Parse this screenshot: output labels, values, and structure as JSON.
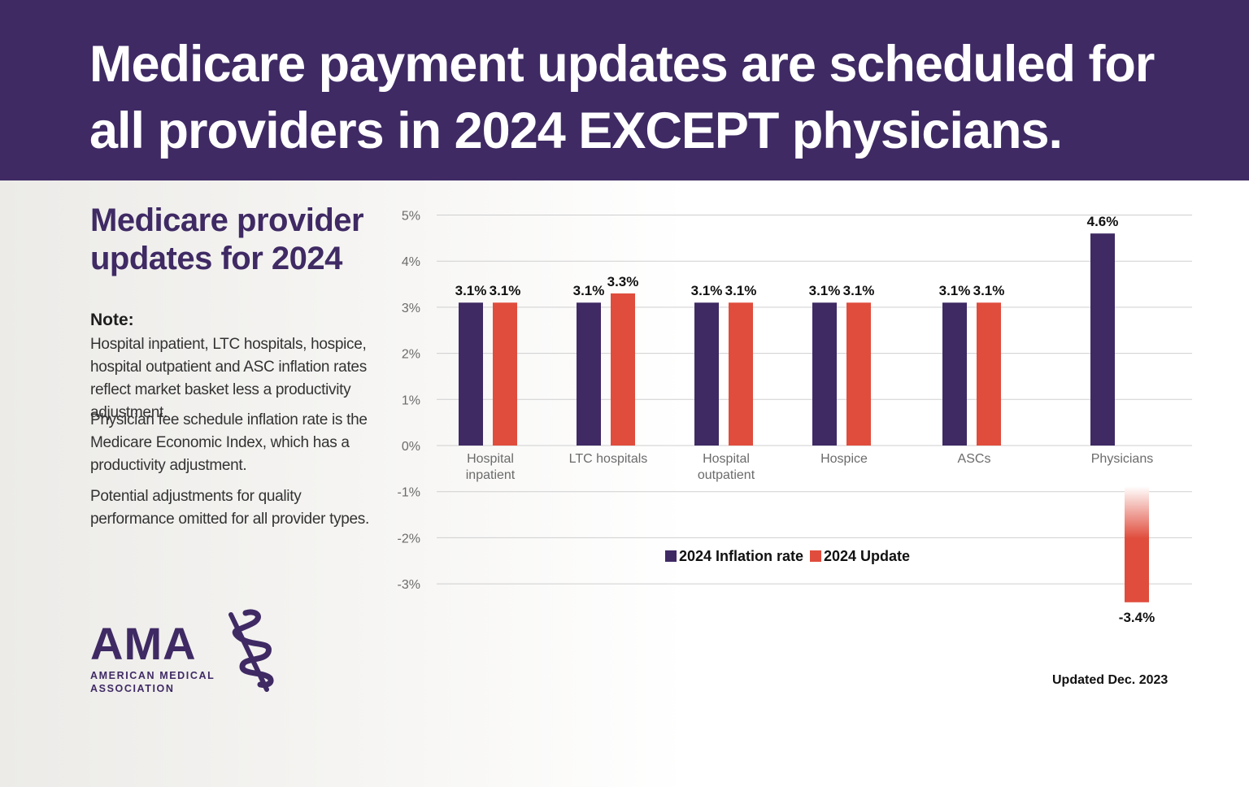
{
  "header": {
    "title_line_1": "Medicare payment updates are scheduled for",
    "title_line_2": "all providers in 2024 EXCEPT physicians."
  },
  "sidebar": {
    "subtitle_line_1": "Medicare provider",
    "subtitle_line_2": "updates for 2024",
    "note_heading": "Note:",
    "notes": [
      "Hospital inpatient, LTC hospitals, hospice, hospital outpatient and ASC inflation rates reflect market basket less a productivity adjustment.",
      "Physician fee schedule inflation rate is the Medicare Economic Index, which has a productivity adjustment.",
      "Potential adjustments for quality performance omitted for all provider types."
    ]
  },
  "logo": {
    "name": "AMA",
    "line_1": "AMERICAN MEDICAL",
    "line_2": "ASSOCIATION",
    "icon": "staff-of-asclepius-icon"
  },
  "footer": {
    "updated": "Updated Dec. 2023"
  },
  "colors": {
    "brand_purple": "#3f2a64",
    "update_red": "#e04d3d",
    "grid": "#cfcfcf"
  },
  "chart_data": {
    "type": "bar",
    "categories": [
      "Hospital\ninpatient",
      "LTC hospitals",
      "Hospital\noutpatient",
      "Hospice",
      "ASCs",
      "Physicians"
    ],
    "series": [
      {
        "name": "2024 Inflation rate",
        "color": "#3f2a64",
        "values": [
          3.1,
          3.1,
          3.1,
          3.1,
          3.1,
          4.6
        ]
      },
      {
        "name": "2024 Update",
        "color": "#e04d3d",
        "values": [
          3.1,
          3.3,
          3.1,
          3.1,
          3.1,
          -3.4
        ]
      }
    ],
    "data_labels": [
      [
        "3.1%",
        "3.1%",
        "3.1%",
        "3.1%",
        "3.1%",
        "4.6%"
      ],
      [
        "3.1%",
        "3.3%",
        "3.1%",
        "3.1%",
        "3.1%",
        "-3.4%"
      ]
    ],
    "y_ticks": [
      5,
      4,
      3,
      2,
      1,
      0,
      -1,
      -2,
      -3
    ],
    "y_tick_labels": [
      "5%",
      "4%",
      "3%",
      "2%",
      "1%",
      "0%",
      "-1%",
      "-2%",
      "-3%"
    ],
    "ylim": [
      -3,
      5
    ],
    "grid": true,
    "legend_placement": "bottom-center"
  }
}
